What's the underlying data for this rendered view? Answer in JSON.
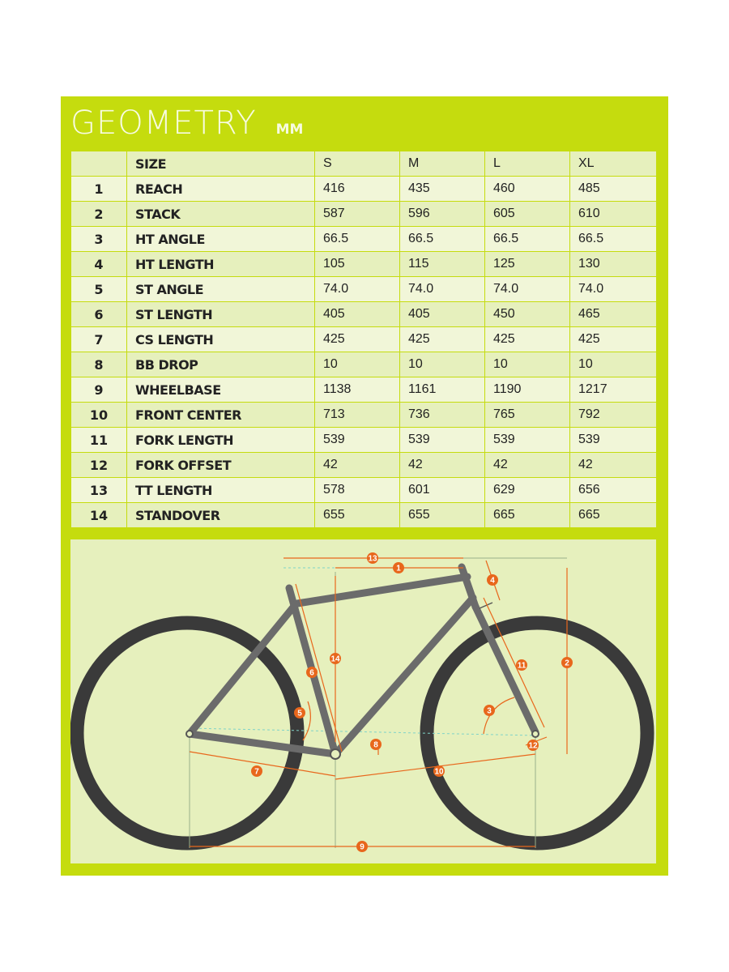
{
  "title": "GEOMETRY",
  "unit": "MM",
  "table": {
    "header": {
      "label": "SIZE",
      "sizes": [
        "S",
        "M",
        "L",
        "XL"
      ]
    },
    "rows": [
      {
        "num": "1",
        "label": "REACH",
        "values": [
          "416",
          "435",
          "460",
          "485"
        ]
      },
      {
        "num": "2",
        "label": "STACK",
        "values": [
          "587",
          "596",
          "605",
          "610"
        ]
      },
      {
        "num": "3",
        "label": "HT ANGLE",
        "values": [
          "66.5",
          "66.5",
          "66.5",
          "66.5"
        ]
      },
      {
        "num": "4",
        "label": "HT LENGTH",
        "values": [
          "105",
          "115",
          "125",
          "130"
        ]
      },
      {
        "num": "5",
        "label": "ST ANGLE",
        "values": [
          "74.0",
          "74.0",
          "74.0",
          "74.0"
        ]
      },
      {
        "num": "6",
        "label": "ST LENGTH",
        "values": [
          "405",
          "405",
          "450",
          "465"
        ]
      },
      {
        "num": "7",
        "label": "CS LENGTH",
        "values": [
          "425",
          "425",
          "425",
          "425"
        ]
      },
      {
        "num": "8",
        "label": "BB DROP",
        "values": [
          "10",
          "10",
          "10",
          "10"
        ]
      },
      {
        "num": "9",
        "label": "WHEELBASE",
        "values": [
          "1138",
          "1161",
          "1190",
          "1217"
        ]
      },
      {
        "num": "10",
        "label": "FRONT CENTER",
        "values": [
          "713",
          "736",
          "765",
          "792"
        ]
      },
      {
        "num": "11",
        "label": "FORK LENGTH",
        "values": [
          "539",
          "539",
          "539",
          "539"
        ]
      },
      {
        "num": "12",
        "label": "FORK OFFSET",
        "values": [
          "42",
          "42",
          "42",
          "42"
        ]
      },
      {
        "num": "13",
        "label": "TT LENGTH",
        "values": [
          "578",
          "601",
          "629",
          "656"
        ]
      },
      {
        "num": "14",
        "label": "STANDOVER",
        "values": [
          "655",
          "655",
          "665",
          "665"
        ]
      }
    ]
  },
  "diagram": {
    "markers": [
      "1",
      "2",
      "3",
      "4",
      "5",
      "6",
      "7",
      "8",
      "9",
      "10",
      "11",
      "12",
      "13",
      "14"
    ]
  },
  "colors": {
    "panel": "#c5dc0e",
    "frame": "#6b6b6b",
    "tire": "#3a3a3a",
    "dimension": "#e8671c"
  }
}
